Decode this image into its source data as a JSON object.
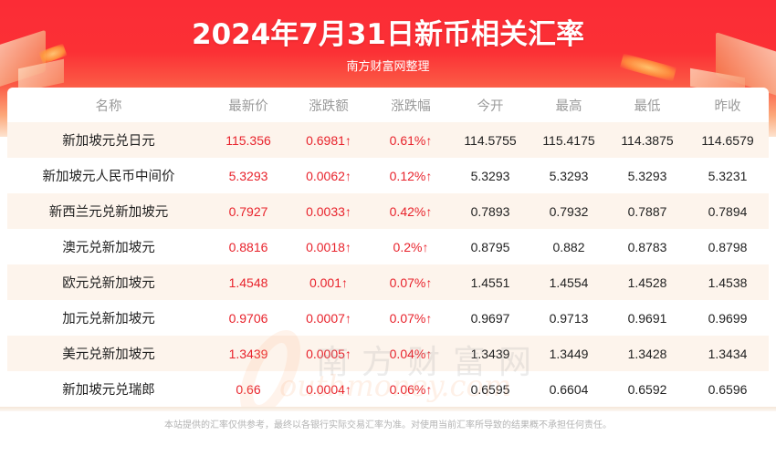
{
  "header": {
    "title": "2024年7月31日新币相关汇率",
    "subtitle": "南方财富网整理"
  },
  "table": {
    "columns": [
      "名称",
      "最新价",
      "涨跌额",
      "涨跌幅",
      "今开",
      "最高",
      "最低",
      "昨收"
    ],
    "rows": [
      {
        "name": "新加坡元兑日元",
        "latest": "115.356",
        "change": "0.6981↑",
        "change_pct": "0.61%↑",
        "open": "114.5755",
        "high": "115.4175",
        "low": "114.3875",
        "prev_close": "114.6579"
      },
      {
        "name": "新加坡元人民币中间价",
        "latest": "5.3293",
        "change": "0.0062↑",
        "change_pct": "0.12%↑",
        "open": "5.3293",
        "high": "5.3293",
        "low": "5.3293",
        "prev_close": "5.3231"
      },
      {
        "name": "新西兰元兑新加坡元",
        "latest": "0.7927",
        "change": "0.0033↑",
        "change_pct": "0.42%↑",
        "open": "0.7893",
        "high": "0.7932",
        "low": "0.7887",
        "prev_close": "0.7894"
      },
      {
        "name": "澳元兑新加坡元",
        "latest": "0.8816",
        "change": "0.0018↑",
        "change_pct": "0.2%↑",
        "open": "0.8795",
        "high": "0.882",
        "low": "0.8783",
        "prev_close": "0.8798"
      },
      {
        "name": "欧元兑新加坡元",
        "latest": "1.4548",
        "change": "0.001↑",
        "change_pct": "0.07%↑",
        "open": "1.4551",
        "high": "1.4554",
        "low": "1.4528",
        "prev_close": "1.4538"
      },
      {
        "name": "加元兑新加坡元",
        "latest": "0.9706",
        "change": "0.0007↑",
        "change_pct": "0.07%↑",
        "open": "0.9697",
        "high": "0.9713",
        "low": "0.9691",
        "prev_close": "0.9699"
      },
      {
        "name": "美元兑新加坡元",
        "latest": "1.3439",
        "change": "0.0005↑",
        "change_pct": "0.04%↑",
        "open": "1.3439",
        "high": "1.3449",
        "low": "1.3428",
        "prev_close": "1.3434"
      },
      {
        "name": "新加坡元兑瑞郎",
        "latest": "0.66",
        "change": "0.0004↑",
        "change_pct": "0.06%↑",
        "open": "0.6595",
        "high": "0.6604",
        "low": "0.6592",
        "prev_close": "0.6596"
      }
    ]
  },
  "watermark": {
    "cn": "南方财富网",
    "en": "outhmoney.com"
  },
  "footer": {
    "disclaimer": "本站提供的汇率仅供参考，最终以各银行实际交易汇率为准。对使用当前汇率所导致的结果概不承担任何责任。"
  },
  "colors": {
    "brand_red": "#fb2c36",
    "up_red": "#e8232c",
    "row_alt": "#fdf4ec",
    "header_text": "#9a9a9a"
  }
}
